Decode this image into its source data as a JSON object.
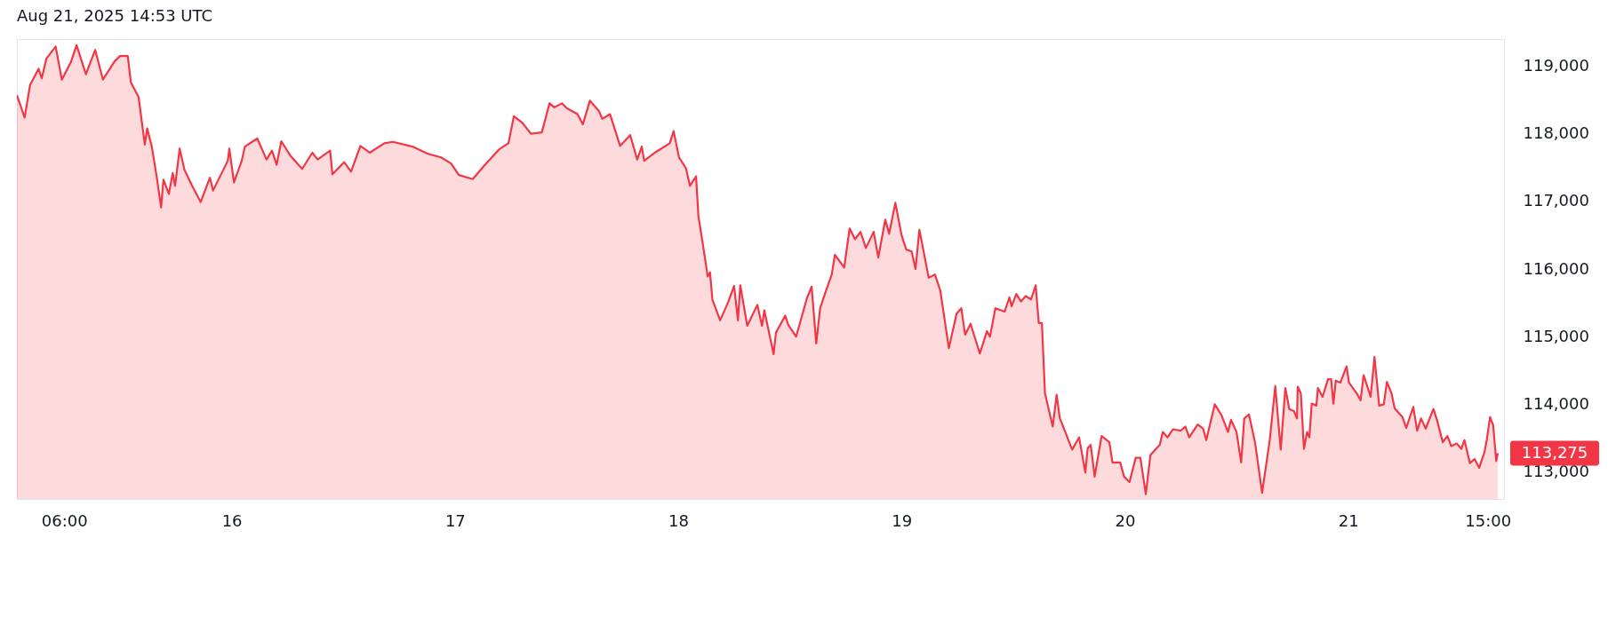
{
  "chart_data": {
    "type": "area",
    "title": "Aug 21, 2025 14:53 UTC",
    "color": "#f23645",
    "x": [
      "2025-08-15T00:55",
      "2025-08-15T01:45",
      "2025-08-15T02:20",
      "2025-08-15T03:15",
      "2025-08-15T03:35",
      "2025-08-15T04:05",
      "2025-08-15T05:05",
      "2025-08-15T05:45",
      "2025-08-15T06:45",
      "2025-08-15T07:20",
      "2025-08-15T08:20",
      "2025-08-15T09:20",
      "2025-08-15T10:10",
      "2025-08-15T11:25",
      "2025-08-15T12:00",
      "2025-08-15T12:50",
      "2025-08-15T13:10",
      "2025-08-15T14:00",
      "2025-08-15T14:40",
      "2025-08-15T14:55",
      "2025-08-15T15:25",
      "2025-08-15T15:55",
      "2025-08-15T16:25",
      "2025-08-15T16:40",
      "2025-08-15T17:15",
      "2025-08-15T17:40",
      "2025-08-15T17:55",
      "2025-08-15T18:25",
      "2025-08-15T18:55",
      "2025-08-15T19:45",
      "2025-08-15T20:40",
      "2025-08-15T21:40",
      "2025-08-15T22:00",
      "2025-08-15T23:35",
      "2025-08-15T23:45",
      "2025-08-16T00:15",
      "2025-08-16T01:05",
      "2025-08-16T01:25",
      "2025-08-16T02:45",
      "2025-08-16T03:45",
      "2025-08-16T04:20",
      "2025-08-16T04:50",
      "2025-08-16T05:20",
      "2025-08-16T06:20",
      "2025-08-16T07:35",
      "2025-08-16T08:40",
      "2025-08-16T09:15",
      "2025-08-16T10:35",
      "2025-08-16T10:50",
      "2025-08-16T12:05",
      "2025-08-16T12:50",
      "2025-08-16T13:50",
      "2025-08-16T14:50",
      "2025-08-16T16:25",
      "2025-08-16T17:20",
      "2025-08-16T19:25",
      "2025-08-16T21:10",
      "2025-08-16T22:30",
      "2025-08-16T23:35",
      "2025-08-17T00:25",
      "2025-08-17T01:55",
      "2025-08-17T03:05",
      "2025-08-17T04:45",
      "2025-08-17T05:45",
      "2025-08-17T06:20",
      "2025-08-17T07:15",
      "2025-08-17T08:10",
      "2025-08-17T09:20",
      "2025-08-17T10:10",
      "2025-08-17T10:40",
      "2025-08-17T11:30",
      "2025-08-17T12:00",
      "2025-08-17T13:10",
      "2025-08-17T13:45",
      "2025-08-17T14:30",
      "2025-08-17T15:30",
      "2025-08-17T15:50",
      "2025-08-17T16:40",
      "2025-08-17T17:45",
      "2025-08-17T18:50",
      "2025-08-17T19:35",
      "2025-08-17T20:05",
      "2025-08-17T20:20",
      "2025-08-17T21:35",
      "2025-08-17T23:05",
      "2025-08-17T23:30",
      "2025-08-18T00:05",
      "2025-08-18T00:50",
      "2025-08-18T01:15",
      "2025-08-18T01:55",
      "2025-08-18T02:10",
      "2025-08-18T02:35",
      "2025-08-18T03:10",
      "2025-08-18T03:25",
      "2025-08-18T03:40",
      "2025-08-18T04:30",
      "2025-08-18T05:20",
      "2025-08-18T06:00",
      "2025-08-18T06:25",
      "2025-08-18T06:40",
      "2025-08-18T07:25",
      "2025-08-18T08:30",
      "2025-08-18T09:00",
      "2025-08-18T09:15",
      "2025-08-18T10:15",
      "2025-08-18T10:30",
      "2025-08-18T11:30",
      "2025-08-18T11:50",
      "2025-08-18T12:40",
      "2025-08-18T13:50",
      "2025-08-18T14:20",
      "2025-08-18T14:50",
      "2025-08-18T15:15",
      "2025-08-18T15:50",
      "2025-08-18T16:30",
      "2025-08-18T16:50",
      "2025-08-18T17:50",
      "2025-08-18T18:25",
      "2025-08-18T19:00",
      "2025-08-18T19:35",
      "2025-08-18T20:10",
      "2025-08-18T21:00",
      "2025-08-18T21:30",
      "2025-08-18T22:15",
      "2025-08-18T22:40",
      "2025-08-18T23:20",
      "2025-08-19T00:00",
      "2025-08-19T00:30",
      "2025-08-19T01:05",
      "2025-08-19T01:30",
      "2025-08-19T01:55",
      "2025-08-19T02:55",
      "2025-08-19T03:35",
      "2025-08-19T04:10",
      "2025-08-19T05:05",
      "2025-08-19T05:55",
      "2025-08-19T06:25",
      "2025-08-19T06:50",
      "2025-08-19T07:25",
      "2025-08-19T08:25",
      "2025-08-19T09:10",
      "2025-08-19T09:30",
      "2025-08-19T10:05",
      "2025-08-19T11:05",
      "2025-08-19T11:35",
      "2025-08-19T11:50",
      "2025-08-19T12:20",
      "2025-08-19T12:50",
      "2025-08-19T13:20",
      "2025-08-19T13:55",
      "2025-08-19T14:25",
      "2025-08-19T14:45",
      "2025-08-19T15:05",
      "2025-08-19T15:25",
      "2025-08-19T16:15",
      "2025-08-19T16:40",
      "2025-08-19T17:00",
      "2025-08-19T18:20",
      "2025-08-19T19:05",
      "2025-08-19T19:45",
      "2025-08-19T20:00",
      "2025-08-19T20:20",
      "2025-08-19T20:45",
      "2025-08-19T21:30",
      "2025-08-19T22:20",
      "2025-08-19T22:40",
      "2025-08-19T23:30",
      "2025-08-19T23:55",
      "2025-08-20T00:30",
      "2025-08-20T01:10",
      "2025-08-20T01:40",
      "2025-08-20T02:15",
      "2025-08-20T02:45",
      "2025-08-20T03:45",
      "2025-08-20T04:05",
      "2025-08-20T04:35",
      "2025-08-20T05:10",
      "2025-08-20T06:00",
      "2025-08-20T06:30",
      "2025-08-20T06:55",
      "2025-08-20T07:50",
      "2025-08-20T08:25",
      "2025-08-20T08:45",
      "2025-08-20T09:40",
      "2025-08-20T10:25",
      "2025-08-20T11:05",
      "2025-08-20T11:25",
      "2025-08-20T12:00",
      "2025-08-20T12:30",
      "2025-08-20T12:50",
      "2025-08-20T13:20",
      "2025-08-20T14:00",
      "2025-08-20T14:45",
      "2025-08-20T15:35",
      "2025-08-20T16:10",
      "2025-08-20T16:45",
      "2025-08-20T17:15",
      "2025-08-20T17:40",
      "2025-08-20T18:10",
      "2025-08-20T18:30",
      "2025-08-20T18:35",
      "2025-08-20T18:55",
      "2025-08-20T19:15",
      "2025-08-20T19:35",
      "2025-08-20T19:50",
      "2025-08-20T20:05",
      "2025-08-20T20:35",
      "2025-08-20T20:45",
      "2025-08-20T21:15",
      "2025-08-20T21:50",
      "2025-08-20T22:10",
      "2025-08-20T22:25",
      "2025-08-20T22:40",
      "2025-08-20T23:10",
      "2025-08-20T23:50",
      "2025-08-21T00:05",
      "2025-08-21T00:55",
      "2025-08-21T01:20",
      "2025-08-21T01:40",
      "2025-08-21T02:25",
      "2025-08-21T02:50",
      "2025-08-21T03:20",
      "2025-08-21T03:50",
      "2025-08-21T04:10",
      "2025-08-21T04:40",
      "2025-08-21T05:00",
      "2025-08-21T05:50",
      "2025-08-21T06:15",
      "2025-08-21T07:00",
      "2025-08-21T07:25",
      "2025-08-21T07:50",
      "2025-08-21T08:20",
      "2025-08-21T09:10",
      "2025-08-21T09:35",
      "2025-08-21T10:10",
      "2025-08-21T10:40",
      "2025-08-21T11:05",
      "2025-08-21T11:40",
      "2025-08-21T12:10",
      "2025-08-21T12:30",
      "2025-08-21T13:05",
      "2025-08-21T13:35",
      "2025-08-21T14:05",
      "2025-08-21T14:40",
      "2025-08-21T14:55",
      "2025-08-21T15:15",
      "2025-08-21T15:35",
      "2025-08-21T15:55",
      "2025-08-21T16:05"
    ],
    "values": [
      118570,
      118240,
      118720,
      118960,
      118820,
      119110,
      119290,
      118800,
      119070,
      119310,
      118880,
      119240,
      118800,
      119070,
      119150,
      119150,
      118760,
      118540,
      117840,
      118080,
      117810,
      117390,
      116910,
      117320,
      117110,
      117420,
      117230,
      117780,
      117470,
      117230,
      116990,
      117350,
      117160,
      117600,
      117780,
      117280,
      117600,
      117810,
      117930,
      117620,
      117750,
      117540,
      117890,
      117670,
      117480,
      117720,
      117620,
      117750,
      117400,
      117580,
      117440,
      117820,
      117720,
      117860,
      117880,
      117810,
      117700,
      117650,
      117560,
      117390,
      117330,
      117520,
      117770,
      117860,
      118260,
      118160,
      118000,
      118020,
      118450,
      118390,
      118450,
      118380,
      118290,
      118140,
      118490,
      118330,
      118220,
      118290,
      117820,
      117980,
      117620,
      117810,
      117600,
      117730,
      117860,
      118040,
      117650,
      117490,
      117230,
      117370,
      116780,
      116420,
      115890,
      115950,
      115550,
      115240,
      115500,
      115750,
      115240,
      115760,
      115160,
      115470,
      115160,
      115390,
      114740,
      115060,
      115310,
      115170,
      115000,
      115570,
      115740,
      114900,
      115420,
      115660,
      115920,
      116210,
      116020,
      116600,
      116440,
      116550,
      116310,
      116550,
      116170,
      116730,
      116520,
      116980,
      116500,
      116290,
      116260,
      116000,
      116580,
      115870,
      115920,
      115680,
      114830,
      115340,
      115420,
      115030,
      115190,
      114750,
      115080,
      115000,
      115420,
      115370,
      115580,
      115450,
      115630,
      115520,
      115600,
      115550,
      115760,
      115200,
      115200,
      114160,
      113670,
      114140,
      113800,
      113330,
      113510,
      112990,
      113350,
      113400,
      112930,
      113530,
      113440,
      113140,
      113140,
      112930,
      112850,
      113210,
      113210,
      112670,
      113250,
      113400,
      113590,
      113510,
      113630,
      113610,
      113670,
      113510,
      113700,
      113640,
      113470,
      114000,
      113830,
      113590,
      113770,
      113590,
      113140,
      113790,
      113850,
      113430,
      112690,
      113480,
      114270,
      113330,
      114240,
      113930,
      113900,
      113790,
      114260,
      114160,
      113340,
      113590,
      113510,
      114010,
      113980,
      114240,
      114110,
      114370,
      114370,
      114010,
      114350,
      114320,
      114560,
      114320,
      114160,
      114060,
      114430,
      114110,
      114700,
      113980,
      114000,
      114330,
      114160,
      113940,
      113810,
      113650,
      113960,
      113610,
      113790,
      113640,
      113930,
      113750,
      113440,
      113530,
      113380,
      113420,
      113340,
      113470,
      113130,
      113190,
      113060,
      113300,
      113490,
      113810,
      113690,
      113160,
      113275
    ],
    "xlim": [
      "2025-08-15T00:55",
      "2025-08-21T16:45"
    ],
    "xticks": [
      {
        "value": "2025-08-15T06:00",
        "label": "06:00"
      },
      {
        "value": "2025-08-16",
        "label": "16"
      },
      {
        "value": "2025-08-17",
        "label": "17"
      },
      {
        "value": "2025-08-18",
        "label": "18"
      },
      {
        "value": "2025-08-19",
        "label": "19"
      },
      {
        "value": "2025-08-20",
        "label": "20"
      },
      {
        "value": "2025-08-21",
        "label": "21"
      },
      {
        "value": "2025-08-21T15:00",
        "label": "15:00"
      }
    ],
    "ylim": [
      112600,
      119400
    ],
    "yticks": [
      {
        "value": 113000,
        "label": "113,000"
      },
      {
        "value": 114000,
        "label": "114,000"
      },
      {
        "value": 115000,
        "label": "115,000"
      },
      {
        "value": 116000,
        "label": "116,000"
      },
      {
        "value": 117000,
        "label": "117,000"
      },
      {
        "value": 118000,
        "label": "118,000"
      },
      {
        "value": 119000,
        "label": "119,000"
      }
    ],
    "annotations": [
      {
        "text": "113,275",
        "x": "2025-08-21T16:05",
        "y": 113275
      }
    ]
  }
}
